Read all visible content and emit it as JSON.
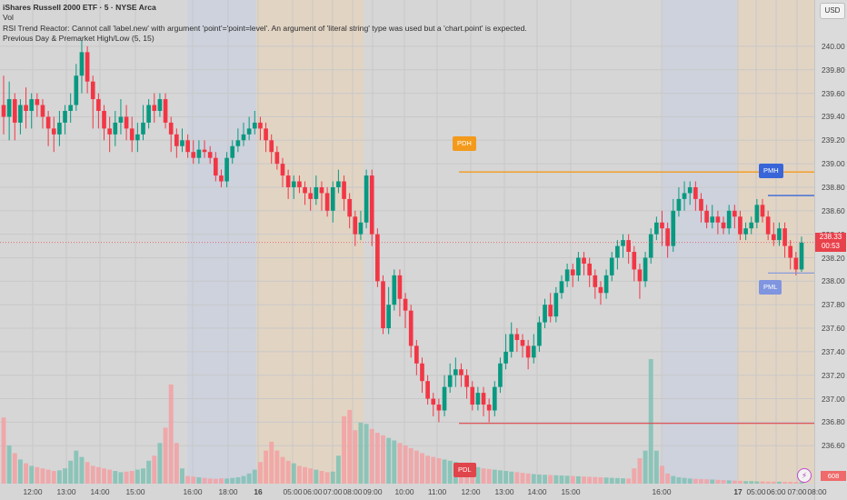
{
  "header": {
    "title": "iShares Russell 2000 ETF · 5 · NYSE Arca",
    "vol_label": "Vol",
    "rsi_error": "RSI Trend Reactor: Cannot call 'label.new' with argument 'point'='point=level'. An argument of 'literal string' type was used but a 'chart.point' is expected.",
    "indicator": "Previous Day & Premarket High/Low (5, 15)"
  },
  "currency": "USD",
  "price_badge": {
    "price": "238.33",
    "timer": "00:53"
  },
  "volume_badge": "608",
  "tags": {
    "pdh": "PDH",
    "pdl": "PDL",
    "pmh": "PMH",
    "pml": "PML"
  },
  "colors": {
    "up": "#089981",
    "down": "#f23645",
    "vol_up": "#7fc1b4",
    "vol_down": "#f3a0a2",
    "premarket_shade": "#ecd4b4",
    "postmarket_shade": "#c6cfe4",
    "pdh_line": "#f39a1c",
    "pdl_line": "#e0454b",
    "pmh_line": "#3866d8",
    "pml_line": "#7f95df"
  },
  "chart_data": {
    "type": "candlestick",
    "symbol": "iShares Russell 2000 ETF",
    "interval": "5",
    "exchange": "NYSE Arca",
    "y_ticks": [
      "240.00",
      "239.80",
      "239.60",
      "239.40",
      "239.20",
      "239.00",
      "238.80",
      "238.60",
      "238.40",
      "238.20",
      "238.00",
      "237.80",
      "237.60",
      "237.40",
      "237.20",
      "237.00",
      "236.80",
      "236.60"
    ],
    "x_ticks": [
      "12:00",
      "13:00",
      "14:00",
      "15:00",
      "16:00",
      "18:00",
      "16",
      "05:00",
      "06:00",
      "07:00",
      "08:00",
      "09:00",
      "10:00",
      "11:00",
      "12:00",
      "13:00",
      "14:00",
      "15:00",
      "16:00",
      "17",
      "05:00",
      "06:00",
      "07:00",
      "08:00"
    ],
    "ylim": [
      236.54,
      240.1
    ],
    "levels": {
      "PDH": 238.93,
      "PDL": 236.79,
      "PMH": 238.73,
      "PML": 238.07
    },
    "session_shading": [
      {
        "kind": "postmarket",
        "from": "16:00",
        "to": "20:00"
      },
      {
        "kind": "premarket",
        "from": "04:00",
        "to": "09:30"
      },
      {
        "kind": "postmarket",
        "from": "16:00",
        "to": "20:00"
      },
      {
        "kind": "premarket",
        "from": "04:00",
        "to": "09:30"
      }
    ],
    "candles": [
      [
        239.5,
        239.4,
        239.75,
        239.25
      ],
      [
        239.4,
        239.55,
        239.7,
        239.2
      ],
      [
        239.55,
        239.35,
        239.6,
        239.2
      ],
      [
        239.35,
        239.5,
        239.55,
        239.25
      ],
      [
        239.5,
        239.45,
        239.65,
        239.3
      ],
      [
        239.45,
        239.55,
        239.6,
        239.3
      ],
      [
        239.55,
        239.5,
        239.6,
        239.4
      ],
      [
        239.5,
        239.4,
        239.55,
        239.3
      ],
      [
        239.4,
        239.3,
        239.45,
        239.15
      ],
      [
        239.3,
        239.25,
        239.4,
        239.1
      ],
      [
        239.25,
        239.35,
        239.45,
        239.15
      ],
      [
        239.35,
        239.45,
        239.5,
        239.25
      ],
      [
        239.45,
        239.5,
        239.6,
        239.35
      ],
      [
        239.5,
        239.75,
        239.85,
        239.45
      ],
      [
        239.75,
        239.95,
        240.05,
        239.6
      ],
      [
        239.95,
        239.7,
        240.0,
        239.6
      ],
      [
        239.7,
        239.55,
        239.75,
        239.3
      ],
      [
        239.55,
        239.45,
        239.6,
        239.3
      ],
      [
        239.45,
        239.3,
        239.5,
        239.2
      ],
      [
        239.3,
        239.25,
        239.4,
        239.1
      ],
      [
        239.25,
        239.35,
        239.45,
        239.15
      ],
      [
        239.35,
        239.4,
        239.55,
        239.25
      ],
      [
        239.4,
        239.3,
        239.5,
        239.2
      ],
      [
        239.3,
        239.2,
        239.4,
        239.1
      ],
      [
        239.2,
        239.25,
        239.35,
        239.1
      ],
      [
        239.25,
        239.35,
        239.5,
        239.2
      ],
      [
        239.35,
        239.5,
        239.55,
        239.3
      ],
      [
        239.5,
        239.45,
        239.6,
        239.35
      ],
      [
        239.45,
        239.55,
        239.6,
        239.4
      ],
      [
        239.55,
        239.35,
        239.6,
        239.3
      ],
      [
        239.35,
        239.25,
        239.4,
        239.1
      ],
      [
        239.25,
        239.15,
        239.3,
        239.05
      ],
      [
        239.15,
        239.2,
        239.3,
        239.1
      ],
      [
        239.2,
        239.1,
        239.25,
        239.05
      ],
      [
        239.1,
        239.05,
        239.2,
        239.0
      ],
      [
        239.05,
        239.12,
        239.2,
        239.0
      ],
      [
        239.12,
        239.1,
        239.2,
        239.05
      ],
      [
        239.1,
        239.05,
        239.15,
        239.0
      ],
      [
        239.05,
        238.9,
        239.1,
        238.85
      ],
      [
        238.9,
        238.85,
        238.95,
        238.8
      ],
      [
        238.85,
        239.05,
        239.1,
        238.8
      ],
      [
        239.05,
        239.15,
        239.2,
        239.0
      ],
      [
        239.15,
        239.2,
        239.3,
        239.1
      ],
      [
        239.2,
        239.25,
        239.35,
        239.15
      ],
      [
        239.25,
        239.3,
        239.4,
        239.2
      ],
      [
        239.3,
        239.35,
        239.45,
        239.25
      ],
      [
        239.35,
        239.3,
        239.4,
        239.2
      ],
      [
        239.3,
        239.2,
        239.35,
        239.1
      ],
      [
        239.2,
        239.1,
        239.25,
        239.0
      ],
      [
        239.1,
        239.0,
        239.15,
        238.95
      ],
      [
        239.0,
        238.9,
        239.05,
        238.8
      ],
      [
        238.9,
        238.8,
        238.95,
        238.7
      ],
      [
        238.8,
        238.85,
        238.9,
        238.7
      ],
      [
        238.85,
        238.8,
        238.9,
        238.75
      ],
      [
        238.8,
        238.75,
        238.85,
        238.65
      ],
      [
        238.75,
        238.7,
        238.8,
        238.6
      ],
      [
        238.7,
        238.8,
        238.9,
        238.65
      ],
      [
        238.8,
        238.75,
        238.85,
        238.6
      ],
      [
        238.75,
        238.6,
        238.8,
        238.55
      ],
      [
        238.6,
        238.8,
        238.85,
        238.5
      ],
      [
        238.8,
        238.85,
        238.95,
        238.75
      ],
      [
        238.85,
        238.7,
        238.9,
        238.6
      ],
      [
        238.7,
        238.55,
        238.75,
        238.45
      ],
      [
        238.55,
        238.4,
        238.6,
        238.3
      ],
      [
        238.4,
        238.5,
        238.6,
        238.35
      ],
      [
        238.5,
        238.9,
        238.95,
        238.45
      ],
      [
        238.9,
        238.4,
        238.95,
        238.3
      ],
      [
        238.4,
        238.0,
        238.45,
        237.95
      ],
      [
        238.0,
        237.6,
        238.05,
        237.55
      ],
      [
        237.6,
        237.8,
        237.95,
        237.55
      ],
      [
        237.8,
        238.05,
        238.1,
        237.75
      ],
      [
        238.05,
        237.85,
        238.1,
        237.7
      ],
      [
        237.85,
        237.75,
        237.9,
        237.6
      ],
      [
        237.75,
        237.45,
        237.8,
        237.35
      ],
      [
        237.45,
        237.3,
        237.5,
        237.2
      ],
      [
        237.3,
        237.15,
        237.35,
        237.05
      ],
      [
        237.15,
        237.0,
        237.2,
        236.95
      ],
      [
        237.0,
        236.95,
        237.05,
        236.85
      ],
      [
        236.95,
        236.9,
        237.0,
        236.8
      ],
      [
        236.9,
        237.1,
        237.2,
        236.85
      ],
      [
        237.1,
        237.2,
        237.3,
        237.05
      ],
      [
        237.2,
        237.25,
        237.35,
        237.1
      ],
      [
        237.25,
        237.2,
        237.3,
        237.1
      ],
      [
        237.2,
        237.1,
        237.25,
        237.0
      ],
      [
        237.1,
        236.95,
        237.15,
        236.9
      ],
      [
        236.95,
        237.05,
        237.1,
        236.9
      ],
      [
        237.05,
        236.95,
        237.1,
        236.85
      ],
      [
        236.95,
        236.9,
        237.0,
        236.8
      ],
      [
        236.9,
        237.1,
        237.15,
        236.85
      ],
      [
        237.1,
        237.3,
        237.35,
        237.05
      ],
      [
        237.3,
        237.4,
        237.55,
        237.25
      ],
      [
        237.4,
        237.55,
        237.65,
        237.35
      ],
      [
        237.55,
        237.5,
        237.6,
        237.4
      ],
      [
        237.5,
        237.45,
        237.55,
        237.35
      ],
      [
        237.45,
        237.35,
        237.5,
        237.25
      ],
      [
        237.35,
        237.45,
        237.55,
        237.3
      ],
      [
        237.45,
        237.65,
        237.7,
        237.4
      ],
      [
        237.65,
        237.8,
        237.85,
        237.6
      ],
      [
        237.8,
        237.7,
        237.9,
        237.65
      ],
      [
        237.7,
        237.9,
        237.95,
        237.65
      ],
      [
        237.9,
        238.0,
        238.05,
        237.85
      ],
      [
        238.0,
        238.1,
        238.15,
        237.95
      ],
      [
        238.1,
        238.05,
        238.15,
        237.95
      ],
      [
        238.05,
        238.2,
        238.25,
        238.0
      ],
      [
        238.2,
        238.15,
        238.25,
        238.05
      ],
      [
        238.15,
        238.05,
        238.2,
        237.95
      ],
      [
        238.05,
        237.95,
        238.1,
        237.85
      ],
      [
        237.95,
        237.9,
        238.0,
        237.8
      ],
      [
        237.9,
        238.05,
        238.1,
        237.85
      ],
      [
        238.05,
        238.2,
        238.25,
        238.0
      ],
      [
        238.2,
        238.3,
        238.35,
        238.1
      ],
      [
        238.3,
        238.35,
        238.4,
        238.2
      ],
      [
        238.35,
        238.25,
        238.4,
        238.15
      ],
      [
        238.25,
        238.1,
        238.3,
        238.0
      ],
      [
        238.1,
        238.0,
        238.15,
        237.85
      ],
      [
        238.0,
        238.2,
        238.25,
        237.95
      ],
      [
        238.2,
        238.4,
        238.45,
        238.15
      ],
      [
        238.4,
        238.5,
        238.55,
        238.35
      ],
      [
        238.5,
        238.45,
        238.6,
        238.3
      ],
      [
        238.45,
        238.3,
        238.5,
        238.2
      ],
      [
        238.3,
        238.6,
        238.7,
        238.25
      ],
      [
        238.6,
        238.7,
        238.8,
        238.55
      ],
      [
        238.7,
        238.75,
        238.85,
        238.6
      ],
      [
        238.75,
        238.8,
        238.85,
        238.65
      ],
      [
        238.8,
        238.7,
        238.85,
        238.6
      ],
      [
        238.7,
        238.6,
        238.75,
        238.5
      ],
      [
        238.6,
        238.5,
        238.65,
        238.45
      ],
      [
        238.5,
        238.55,
        238.65,
        238.45
      ],
      [
        238.55,
        238.5,
        238.6,
        238.4
      ],
      [
        238.5,
        238.45,
        238.55,
        238.4
      ],
      [
        238.45,
        238.6,
        238.65,
        238.4
      ],
      [
        238.6,
        238.55,
        238.65,
        238.45
      ],
      [
        238.55,
        238.4,
        238.6,
        238.35
      ],
      [
        238.4,
        238.45,
        238.5,
        238.35
      ],
      [
        238.45,
        238.5,
        238.55,
        238.4
      ],
      [
        238.5,
        238.65,
        238.7,
        238.45
      ],
      [
        238.65,
        238.55,
        238.7,
        238.5
      ],
      [
        238.55,
        238.4,
        238.6,
        238.35
      ],
      [
        238.4,
        238.35,
        238.5,
        238.3
      ],
      [
        238.35,
        238.45,
        238.5,
        238.3
      ],
      [
        238.45,
        238.3,
        238.5,
        238.2
      ],
      [
        238.3,
        238.2,
        238.35,
        238.1
      ],
      [
        238.2,
        238.1,
        238.25,
        238.05
      ],
      [
        238.1,
        238.33,
        238.38,
        238.08
      ]
    ],
    "volume": [
      520,
      300,
      240,
      190,
      160,
      140,
      130,
      120,
      110,
      100,
      105,
      120,
      180,
      260,
      210,
      170,
      140,
      130,
      120,
      110,
      100,
      90,
      95,
      100,
      110,
      120,
      180,
      220,
      320,
      440,
      780,
      320,
      120,
      60,
      55,
      50,
      45,
      40,
      38,
      42,
      40,
      45,
      50,
      60,
      80,
      110,
      170,
      260,
      330,
      260,
      210,
      180,
      160,
      140,
      130,
      120,
      110,
      100,
      90,
      95,
      220,
      530,
      580,
      420,
      480,
      470,
      430,
      400,
      380,
      360,
      340,
      320,
      300,
      280,
      260,
      240,
      220,
      210,
      200,
      190,
      180,
      170,
      160,
      150,
      140,
      130,
      120,
      115,
      110,
      105,
      100,
      95,
      90,
      85,
      80,
      75,
      72,
      70,
      68,
      66,
      64,
      62,
      60,
      58,
      56,
      54,
      52,
      50,
      48,
      46,
      44,
      42,
      40,
      120,
      200,
      260,
      980,
      260,
      140,
      80,
      60,
      50,
      45,
      40,
      38,
      36,
      34,
      32,
      30,
      28,
      26,
      24,
      22,
      20,
      20,
      18,
      18,
      16,
      16,
      15,
      14,
      14,
      13,
      12
    ]
  }
}
